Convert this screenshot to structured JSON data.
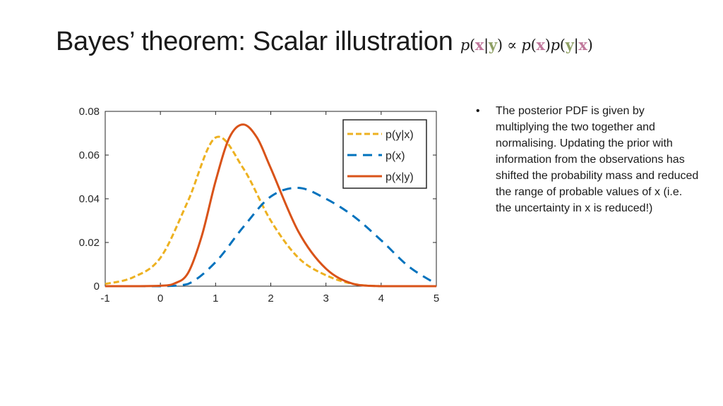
{
  "slide": {
    "title_text": "Bayes’ theorem:  Scalar illustration",
    "formula": {
      "p": "p",
      "open": "(",
      "close": ")",
      "bar": "|",
      "prop": "∝",
      "x": "x",
      "y": "y"
    },
    "bullet": {
      "marker": "•",
      "text": "The posterior PDF is given by multiplying the two together and normalising. Updating the prior with information from the observations has shifted the probability mass and reduced the range of probable values of x (i.e. the uncertainty in x is reduced!)"
    }
  },
  "chart_data": {
    "type": "line",
    "xlim": [
      -1,
      5
    ],
    "ylim": [
      0,
      0.08
    ],
    "x_ticks": [
      "-1",
      "0",
      "1",
      "2",
      "3",
      "4",
      "5"
    ],
    "y_ticks": [
      "0",
      "0.02",
      "0.04",
      "0.06",
      "0.08"
    ],
    "grid": false,
    "legend_position": "top-right",
    "series": [
      {
        "name": "p(y|x)",
        "style": "dashed",
        "color": "#EDB120",
        "x": [
          -1,
          -0.5,
          0,
          0.5,
          1.0,
          1.5,
          2.0,
          2.5,
          3.0,
          3.5,
          4.0,
          4.5,
          5.0
        ],
        "y": [
          0.001,
          0.004,
          0.013,
          0.039,
          0.068,
          0.054,
          0.03,
          0.013,
          0.005,
          0.001,
          0,
          0,
          0
        ]
      },
      {
        "name": "p(x)",
        "style": "dashed",
        "color": "#0072BD",
        "x": [
          -1,
          -0.5,
          0,
          0.5,
          1.0,
          1.5,
          2.0,
          2.5,
          3.0,
          3.5,
          4.0,
          4.5,
          5.0
        ],
        "y": [
          0,
          0,
          0,
          0.001,
          0.011,
          0.027,
          0.041,
          0.045,
          0.04,
          0.032,
          0.021,
          0.009,
          0.001
        ]
      },
      {
        "name": "p(x|y)",
        "style": "solid",
        "color": "#D95319",
        "x": [
          -1,
          -0.5,
          0,
          0.25,
          0.5,
          0.75,
          1.0,
          1.25,
          1.5,
          1.75,
          2.0,
          2.5,
          3.0,
          3.5,
          4.0,
          4.5,
          5.0
        ],
        "y": [
          0,
          0,
          0.0002,
          0.0012,
          0.006,
          0.023,
          0.048,
          0.068,
          0.074,
          0.068,
          0.054,
          0.025,
          0.008,
          0.001,
          0,
          0,
          0
        ]
      }
    ]
  }
}
